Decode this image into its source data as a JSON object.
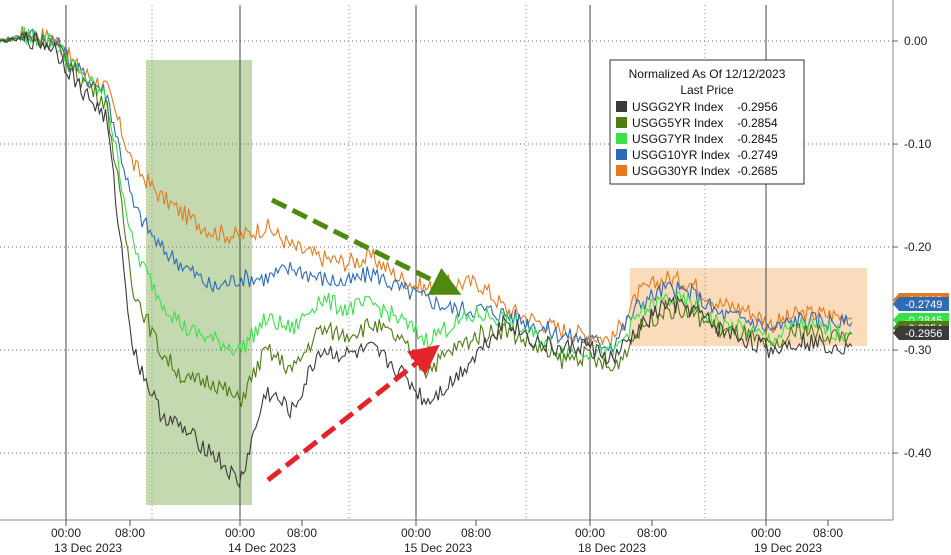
{
  "chart_data": {
    "type": "line",
    "title": "",
    "xlabel": "",
    "ylabel": "",
    "ylim": [
      -0.465,
      0.035
    ],
    "y_ticks": [
      "0.00",
      "-0.10",
      "-0.20",
      "-0.30",
      "-0.40"
    ],
    "x_time_labels": [
      "00:00",
      "08:00",
      "00:00",
      "08:00",
      "00:00",
      "08:00",
      "00:00",
      "08:00",
      "00:00",
      "08:00"
    ],
    "x_date_labels": [
      "13 Dec 2023",
      "14 Dec 2023",
      "15 Dec 2023",
      "18 Dec 2023",
      "19 Dec 2023"
    ],
    "legend": {
      "title": "Normalized As Of 12/12/2023",
      "subtitle": "Last Price",
      "placement": "top-right"
    },
    "series": [
      {
        "name": "USGG2YR Index",
        "last_label": "-0.2956",
        "last": -0.2956,
        "color": "#3a3a3a",
        "points": [
          0.0,
          0.002,
          -0.005,
          -0.045,
          -0.075,
          -0.3,
          -0.36,
          -0.38,
          -0.4,
          -0.43,
          -0.34,
          -0.36,
          -0.3,
          -0.305,
          -0.3,
          -0.32,
          -0.35,
          -0.33,
          -0.3,
          -0.27,
          -0.29,
          -0.3,
          -0.295,
          -0.31,
          -0.28,
          -0.255,
          -0.26,
          -0.28,
          -0.29,
          -0.3,
          -0.29,
          -0.295,
          -0.2956
        ]
      },
      {
        "name": "USGG5YR Index",
        "last_label": "-0.2854",
        "last": -0.2854,
        "color": "#4f7a14",
        "points": [
          0.0,
          0.004,
          -0.002,
          -0.035,
          -0.06,
          -0.24,
          -0.3,
          -0.33,
          -0.33,
          -0.35,
          -0.3,
          -0.32,
          -0.28,
          -0.285,
          -0.275,
          -0.29,
          -0.32,
          -0.3,
          -0.285,
          -0.28,
          -0.295,
          -0.31,
          -0.305,
          -0.32,
          -0.28,
          -0.26,
          -0.265,
          -0.28,
          -0.285,
          -0.3,
          -0.28,
          -0.285,
          -0.2854
        ]
      },
      {
        "name": "USGG7YR Index",
        "last_label": "-0.2845",
        "last": -0.2845,
        "color": "#39e04a",
        "points": [
          0.0,
          0.005,
          0.0,
          -0.032,
          -0.055,
          -0.2,
          -0.25,
          -0.28,
          -0.29,
          -0.3,
          -0.27,
          -0.28,
          -0.25,
          -0.26,
          -0.255,
          -0.27,
          -0.29,
          -0.275,
          -0.265,
          -0.27,
          -0.285,
          -0.3,
          -0.3,
          -0.305,
          -0.265,
          -0.25,
          -0.255,
          -0.275,
          -0.28,
          -0.29,
          -0.275,
          -0.28,
          -0.2845
        ]
      },
      {
        "name": "USGG10YR Index",
        "last_label": "-0.2749",
        "last": -0.2749,
        "color": "#2f6bb5",
        "points": [
          0.0,
          0.006,
          0.002,
          -0.03,
          -0.05,
          -0.16,
          -0.2,
          -0.22,
          -0.24,
          -0.23,
          -0.23,
          -0.22,
          -0.23,
          -0.235,
          -0.225,
          -0.24,
          -0.25,
          -0.26,
          -0.26,
          -0.265,
          -0.275,
          -0.285,
          -0.29,
          -0.295,
          -0.255,
          -0.24,
          -0.245,
          -0.265,
          -0.27,
          -0.28,
          -0.27,
          -0.272,
          -0.2749
        ]
      },
      {
        "name": "USGG30YR Index",
        "last_label": "-0.2685",
        "last": -0.2685,
        "color": "#e37a1d",
        "points": [
          0.0,
          0.008,
          0.004,
          -0.028,
          -0.045,
          -0.12,
          -0.15,
          -0.17,
          -0.185,
          -0.19,
          -0.18,
          -0.2,
          -0.21,
          -0.215,
          -0.21,
          -0.23,
          -0.24,
          -0.235,
          -0.235,
          -0.26,
          -0.27,
          -0.28,
          -0.285,
          -0.29,
          -0.245,
          -0.23,
          -0.235,
          -0.255,
          -0.26,
          -0.275,
          -0.265,
          -0.265,
          -0.2685
        ]
      }
    ]
  }
}
